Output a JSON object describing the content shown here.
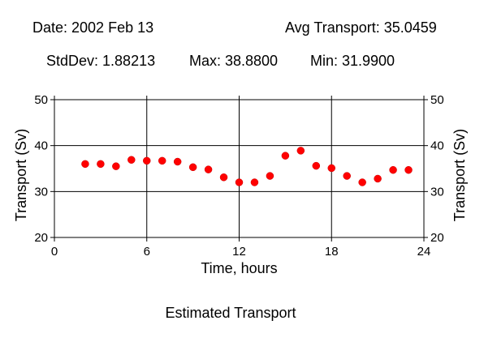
{
  "header": {
    "date": "Date: 2002 Feb 13",
    "avg": "Avg Transport: 35.0459",
    "stddev": "StdDev: 1.88213",
    "max": "Max: 38.8800",
    "min": "Min: 31.9900"
  },
  "chart_data": {
    "type": "scatter",
    "title": "Estimated Transport",
    "xlabel": "Time, hours",
    "ylabel": "Transport (Sv)",
    "xlim": [
      0,
      24
    ],
    "ylim": [
      20,
      50
    ],
    "xticks": [
      0,
      6,
      12,
      18,
      24
    ],
    "yticks": [
      20,
      30,
      40,
      50
    ],
    "grid": true,
    "marker_color": "#ff0000",
    "points": [
      {
        "x": 2,
        "y": 36.0
      },
      {
        "x": 3,
        "y": 36.0
      },
      {
        "x": 4,
        "y": 35.5
      },
      {
        "x": 5,
        "y": 36.9
      },
      {
        "x": 6,
        "y": 36.7
      },
      {
        "x": 7,
        "y": 36.7
      },
      {
        "x": 8,
        "y": 36.5
      },
      {
        "x": 9,
        "y": 35.3
      },
      {
        "x": 10,
        "y": 34.8
      },
      {
        "x": 11,
        "y": 33.1
      },
      {
        "x": 12,
        "y": 32.0
      },
      {
        "x": 13,
        "y": 32.0
      },
      {
        "x": 14,
        "y": 33.4
      },
      {
        "x": 15,
        "y": 37.8
      },
      {
        "x": 16,
        "y": 38.9
      },
      {
        "x": 17,
        "y": 35.6
      },
      {
        "x": 18,
        "y": 35.1
      },
      {
        "x": 19,
        "y": 33.4
      },
      {
        "x": 20,
        "y": 32.0
      },
      {
        "x": 21,
        "y": 32.8
      },
      {
        "x": 22,
        "y": 34.7
      },
      {
        "x": 23,
        "y": 34.7
      }
    ]
  }
}
